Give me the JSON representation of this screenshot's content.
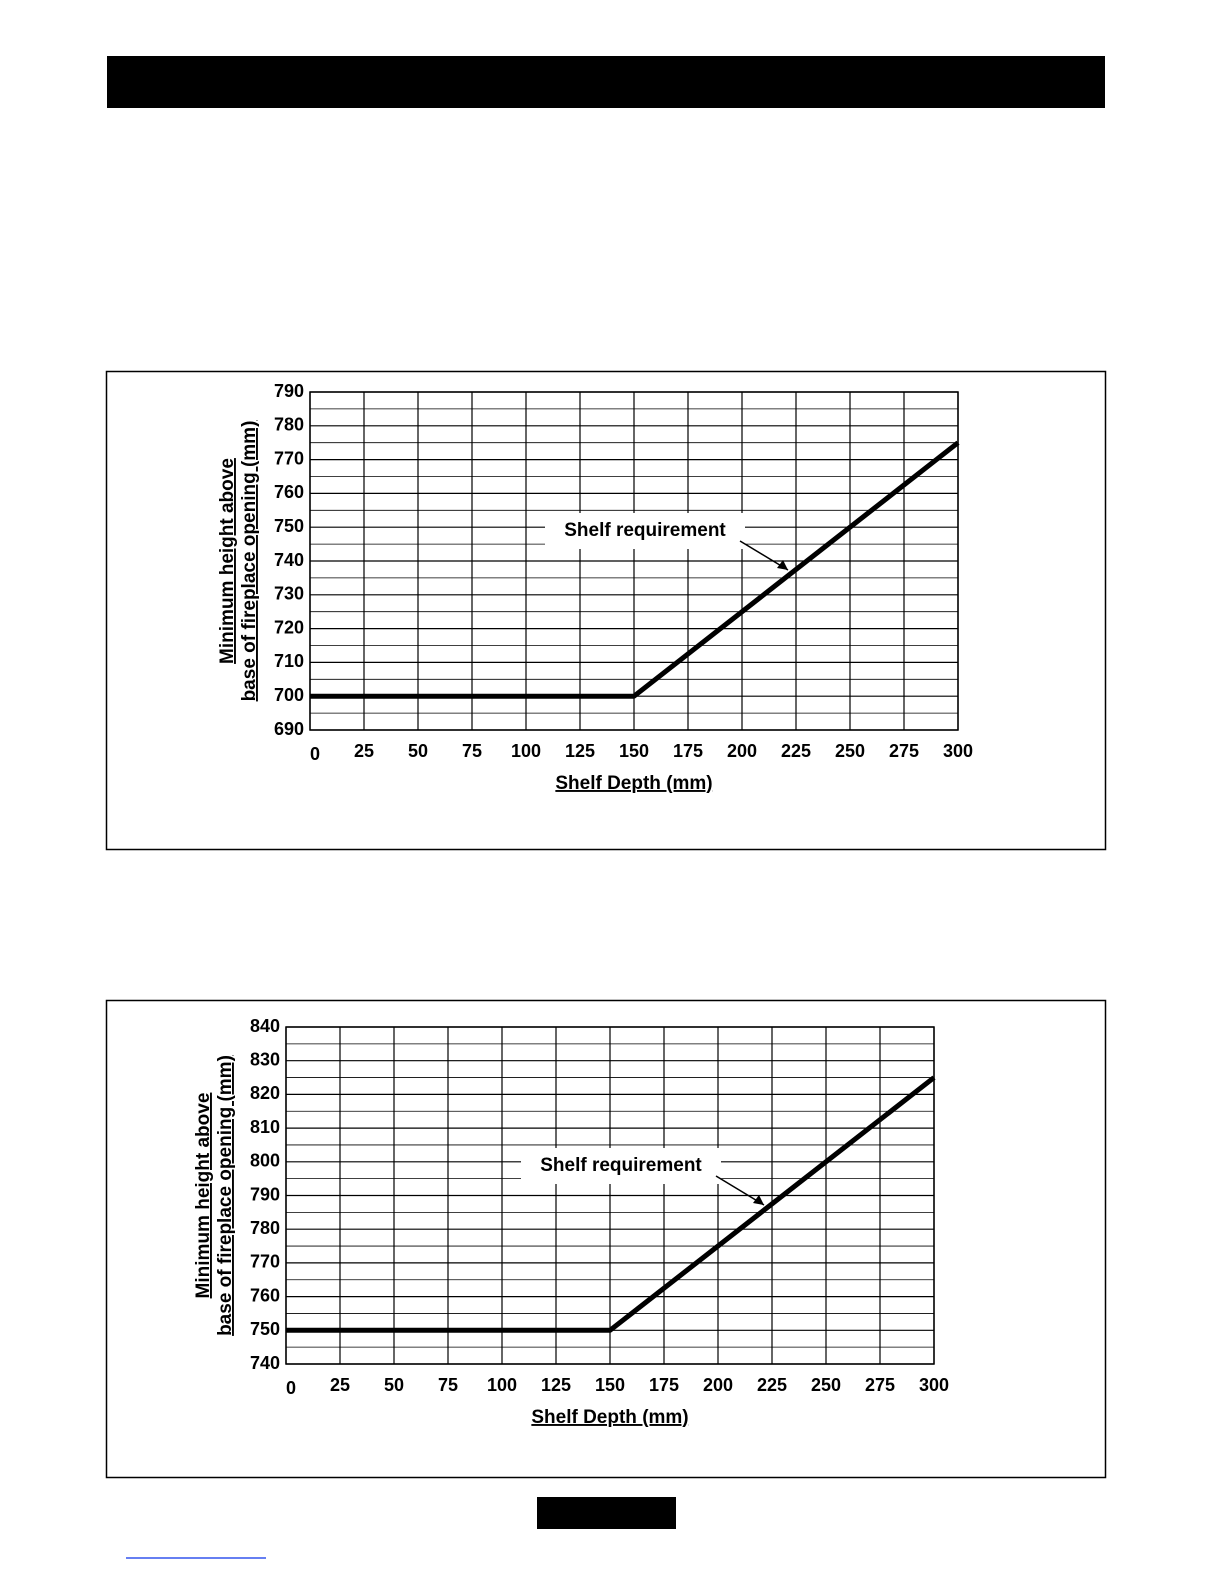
{
  "chart_data": [
    {
      "type": "line",
      "annotation": "Shelf requirement",
      "x_label": "Shelf Depth (mm)",
      "y_label": [
        "Minimum height above",
        "base of fireplace opening (mm)"
      ],
      "x": [
        0,
        150,
        300
      ],
      "values": [
        700,
        700,
        775
      ],
      "color": "#000000",
      "xlim": [
        0,
        300
      ],
      "xticks": [
        0,
        25,
        50,
        75,
        100,
        125,
        150,
        175,
        200,
        225,
        250,
        275,
        300
      ],
      "ylim": [
        690,
        790
      ],
      "yticks": [
        690,
        700,
        710,
        720,
        730,
        740,
        750,
        760,
        770,
        780,
        790
      ],
      "grid": true,
      "minor_grid": true
    },
    {
      "type": "line",
      "annotation": "Shelf requirement",
      "x_label": "Shelf Depth (mm)",
      "y_label": [
        "Minimum height above",
        "base of fireplace opening (mm)"
      ],
      "x": [
        0,
        150,
        300
      ],
      "values": [
        750,
        750,
        825
      ],
      "color": "#000000",
      "xlim": [
        0,
        300
      ],
      "xticks": [
        0,
        25,
        50,
        75,
        100,
        125,
        150,
        175,
        200,
        225,
        250,
        275,
        300
      ],
      "ylim": [
        740,
        840
      ],
      "yticks": [
        740,
        750,
        760,
        770,
        780,
        790,
        800,
        810,
        820,
        830,
        840
      ],
      "grid": true,
      "minor_grid": true
    }
  ]
}
